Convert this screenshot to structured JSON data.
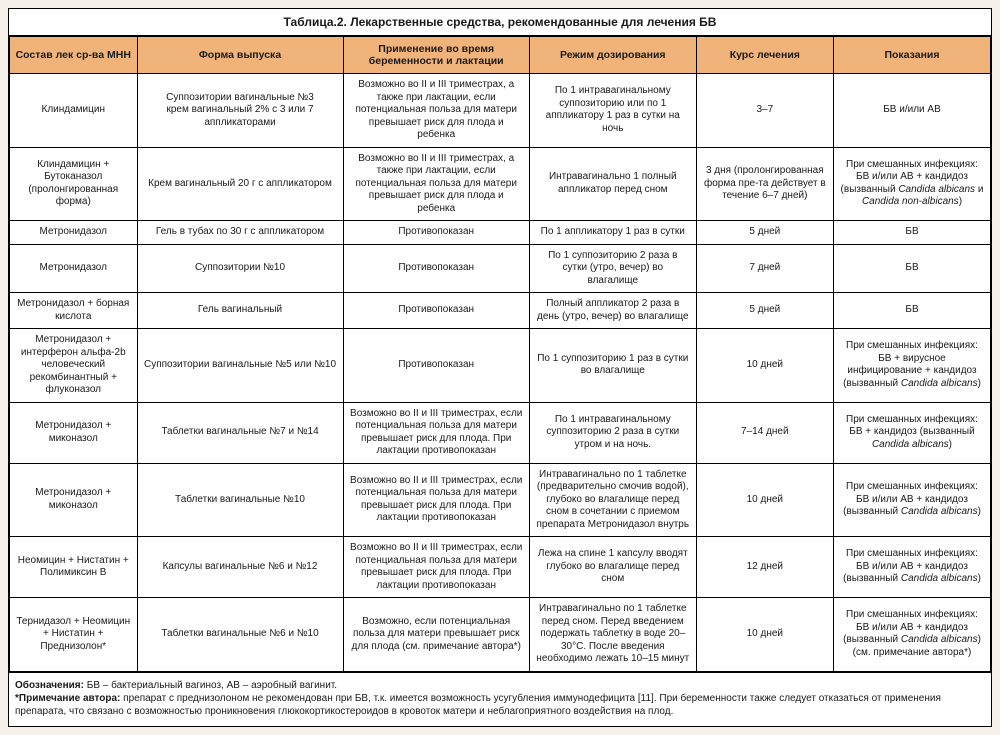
{
  "title": "Таблица.2. Лекарственные средства, рекомендованные для лечения БВ",
  "columns": [
    "Состав лек ср-ва\nМНН",
    "Форма выпуска",
    "Применение во время беременности и лактации",
    "Режим дозирования",
    "Курс лечения",
    "Показания"
  ],
  "rows": [
    {
      "c1": "Клиндамицин",
      "c2": "Суппозитории вагинальные №3\nкрем вагинальный 2% с 3 или 7 аппликаторами",
      "c3": "Возможно во II и III триместрах, а также при лактации, если потенциальная польза для матери превышает риск для плода и ребенка",
      "c4": "По 1 интравагинальному суппозиторию или по 1 аппликатору 1 раз в сутки на ночь",
      "c5": "3–7",
      "c6": "БВ и/или АВ"
    },
    {
      "c1": "Клиндамицин + Бутоканазол (пролонгированная форма)",
      "c2": "Крем вагинальный 20 г с аппликатором",
      "c3": "Возможно во II и III триместрах, а также при лактации, если потенциальная польза для матери превышает риск для плода и ребенка",
      "c4": "Интравагинально 1 полный аппликатор перед сном",
      "c5": "3 дня (пролонгированная форма пре-та действует в течение 6–7 дней)",
      "c6": "При смешанных инфекциях: БВ и/или АВ + кандидоз (вызванный Candida albicans и Candida non-albicans)"
    },
    {
      "c1": "Метронидазол",
      "c2": "Гель в тубах по 30 г с аппликатором",
      "c3": "Противопоказан",
      "c4": "По 1 аппликатору 1 раз в сутки",
      "c5": "5 дней",
      "c6": "БВ"
    },
    {
      "c1": "Метронидазол",
      "c2": "Суппозитории №10",
      "c3": "Противопоказан",
      "c4": "По 1 суппозиторию 2 раза в сутки (утро, вечер) во влагалище",
      "c5": "7 дней",
      "c6": "БВ"
    },
    {
      "c1": "Метронидазол + борная кислота",
      "c2": "Гель вагинальный",
      "c3": "Противопоказан",
      "c4": "Полный аппликатор 2 раза в день (утро, вечер) во влагалище",
      "c5": "5 дней",
      "c6": "БВ"
    },
    {
      "c1": "Метронидазол + интерферон альфа-2b человеческий рекомбинантный + флуконазол",
      "c2": "Суппозитории вагинальные №5 или №10",
      "c3": "Противопоказан",
      "c4": "По 1 суппозиторию 1 раз в сутки во влагалище",
      "c5": "10 дней",
      "c6": "При смешанных инфекциях: БВ + вирусное инфицирование + кандидоз (вызванный Candida albicans)"
    },
    {
      "c1": "Метронидазол + миконазол",
      "c2": "Таблетки вагинальные №7 и №14",
      "c3": "Возможно во II и III триместрах, если потенциальная польза для матери превышает риск для плода. При лактации противопоказан",
      "c4": "По 1 интравагинальному суппозиторию 2 раза в сутки утром и на ночь.",
      "c5": "7–14 дней",
      "c6": "При смешанных инфекциях: БВ + кандидоз (вызванный Candida albicans)"
    },
    {
      "c1": "Метронидазол + миконазол",
      "c2": "Таблетки вагинальные №10",
      "c3": "Возможно во II и III триместрах, если потенциальная польза для матери превышает риск для плода. При лактации противопоказан",
      "c4": "Интравагинально по 1 таблетке (предварительно смочив водой), глубоко во влагалище перед сном в сочетании с приемом препарата Метронидазол внутрь",
      "c5": "10 дней",
      "c6": "При смешанных инфекциях: БВ и/или АВ + кандидоз (вызванный Candida albicans)"
    },
    {
      "c1": "Неомицин + Нистатин + Полимиксин В",
      "c2": "Капсулы вагинальные №6 и №12",
      "c3": "Возможно во II и III триместрах, если потенциальная польза для матери превышает риск для плода. При лактации противопоказан",
      "c4": "Лежа на спине 1 капсулу вводят глубоко во влагалище перед сном",
      "c5": "12 дней",
      "c6": "При смешанных инфекциях: БВ и/или АВ + кандидоз (вызванный Candida albicans)"
    },
    {
      "c1": "Тернидазол + Неомицин + Нистатин + Преднизолон*",
      "c2": "Таблетки вагинальные №6 и №10",
      "c3": "Возможно, если потенциальная польза для матери превышает риск для плода (см. примечание автора*)",
      "c4": "Интравагинально по 1 таблетке перед сном. Перед введением подержать таблетку в воде 20–30°С. После введения необходимо лежать 10–15 минут",
      "c5": "10 дней",
      "c6": "При смешанных инфекциях: БВ и/или АВ + кандидоз (вызванный Candida albicans) (см. примечание автора*)"
    }
  ],
  "footer": {
    "label1": "Обозначения:",
    "text1": " БВ – бактериальный вагиноз, АВ – аэробный вагинит.",
    "label2": "*Примечание автора:",
    "text2": " препарат с преднизолоном не рекомендован при БВ, т.к. имеется возможность усугубления иммунодефицита [11]. При беременности также следует отказаться от применения препарата, что связано с возможностью проникновения глюкокортикостероидов в кровоток матери и неблагоприятного воздействия на плод."
  }
}
